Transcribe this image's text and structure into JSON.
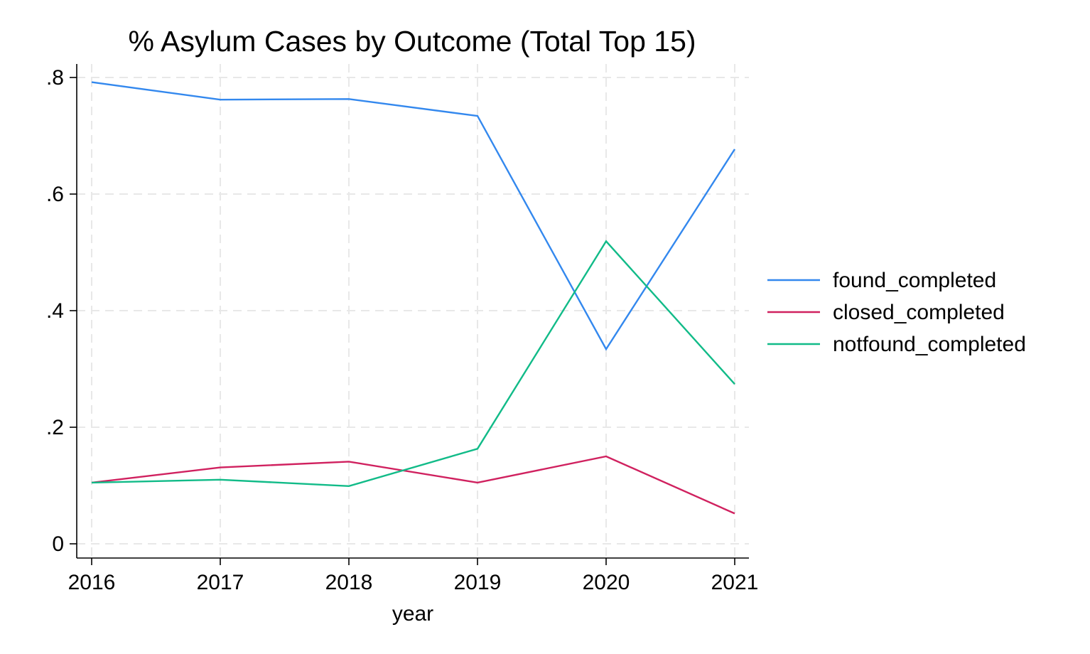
{
  "chart_data": {
    "type": "line",
    "title": "% Asylum Cases by Outcome (Total Top 15)",
    "xlabel": "year",
    "ylabel": "",
    "x": [
      2016,
      2017,
      2018,
      2019,
      2020,
      2021
    ],
    "x_tick_labels": [
      "2016",
      "2017",
      "2018",
      "2019",
      "2020",
      "2021"
    ],
    "y_ticks": [
      0,
      0.2,
      0.4,
      0.6,
      0.8
    ],
    "y_tick_labels": [
      "0",
      ".2",
      ".4",
      ".6",
      ".8"
    ],
    "xlim": [
      2016,
      2021
    ],
    "ylim": [
      0,
      0.8
    ],
    "grid": true,
    "legend_position": "right",
    "series": [
      {
        "name": "found_completed",
        "color": "#3388ee",
        "values": [
          0.792,
          0.762,
          0.763,
          0.734,
          0.334,
          0.677
        ]
      },
      {
        "name": "closed_completed",
        "color": "#d0215f",
        "values": [
          0.105,
          0.131,
          0.141,
          0.105,
          0.15,
          0.052
        ]
      },
      {
        "name": "notfound_completed",
        "color": "#11bb88",
        "values": [
          0.105,
          0.11,
          0.099,
          0.163,
          0.519,
          0.274
        ]
      }
    ]
  }
}
